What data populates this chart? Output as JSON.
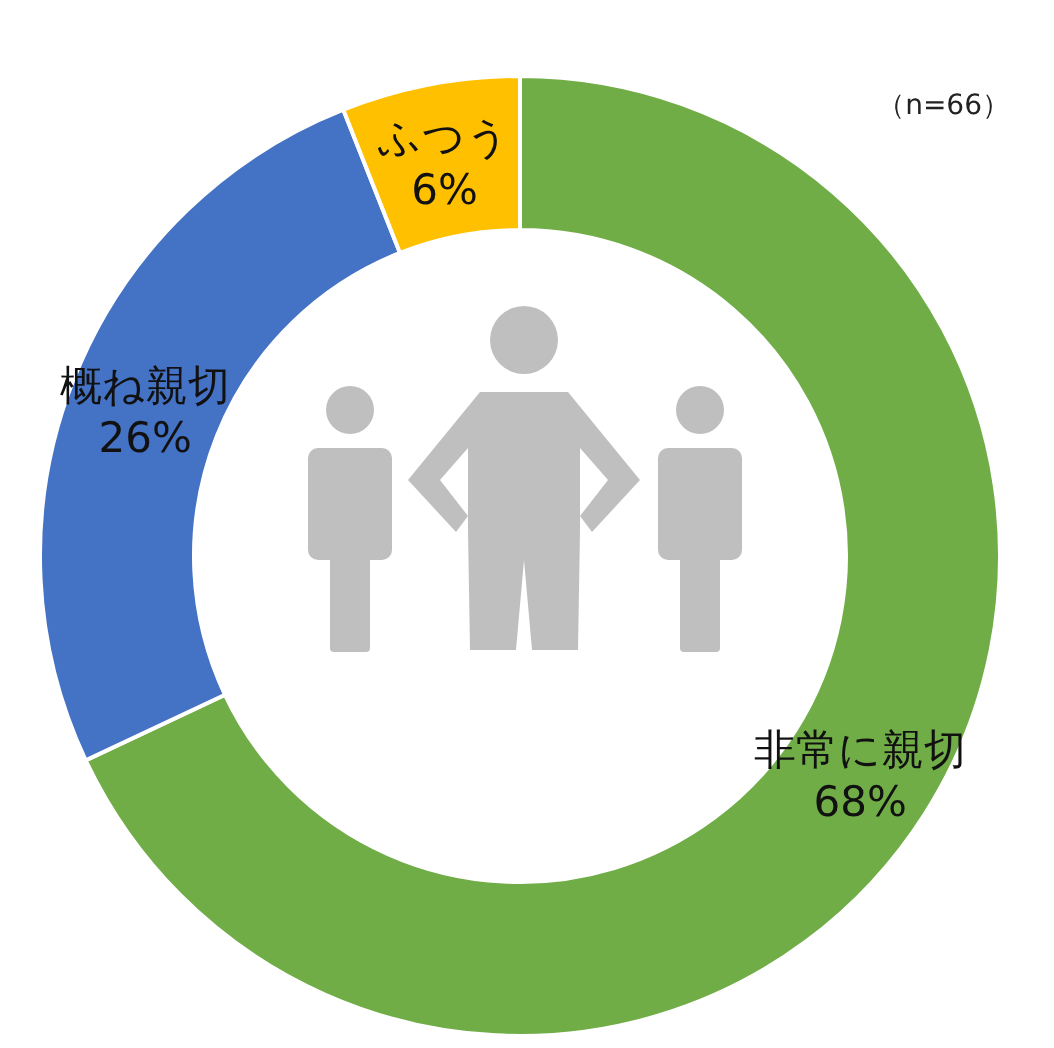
{
  "chart_data": {
    "type": "donut",
    "categories": [
      "非常に親切",
      "概ね親切",
      "ふつう"
    ],
    "values": [
      68,
      26,
      6
    ],
    "value_labels": [
      "68%",
      "26%",
      "6%"
    ],
    "colors": [
      "#70ad47",
      "#4472c4",
      "#ffc000"
    ],
    "annotations": [
      "（n=66）"
    ]
  }
}
